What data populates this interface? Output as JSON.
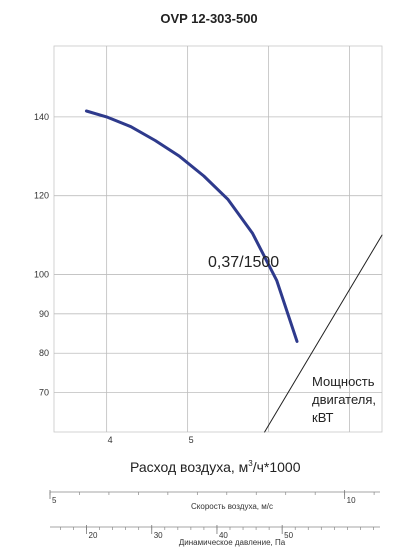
{
  "chart_data": {
    "type": "line",
    "title": "OVP 12-303-500",
    "xlabel": "Расход воздуха, м³/ч*1000",
    "xlabel_main": "Расход воздуха, м",
    "xlabel_sup": "3",
    "xlabel_tail": "/ч*1000",
    "xlim": [
      3.35,
      7.4
    ],
    "ylim": [
      60,
      158
    ],
    "x_ticks": [
      "4",
      "5"
    ],
    "y_ticks": [
      "140",
      "120",
      "100",
      "90",
      "80",
      "70"
    ],
    "y_tick_values": [
      140,
      120,
      100,
      90,
      80,
      70
    ],
    "grid": true,
    "series": [
      {
        "name": "",
        "color": "#2e3a8c",
        "x": [
          3.75,
          4.0,
          4.3,
          4.6,
          4.9,
          5.2,
          5.5,
          5.8,
          6.1,
          6.35
        ],
        "y": [
          141.5,
          140,
          137.5,
          134,
          130,
          125,
          119,
          110.5,
          98.5,
          83
        ]
      },
      {
        "name": "",
        "color": "#222222",
        "x": [
          5.95,
          7.4
        ],
        "y": [
          60,
          110
        ]
      }
    ],
    "annotations": {
      "curve_label": "0,37/1500",
      "power_label": [
        "Мощность",
        "двигателя,",
        "кВТ"
      ]
    },
    "secondary_axes": [
      {
        "label": "Скорость воздуха, м/с",
        "ticks": [
          {
            "label": "5",
            "value": 5
          },
          {
            "label": "10",
            "value": 10
          }
        ],
        "range": [
          5,
          10.6
        ]
      },
      {
        "label": "Динамическое давление, Па",
        "ticks": [
          {
            "label": "20",
            "value": 20
          },
          {
            "label": "30",
            "value": 30
          },
          {
            "label": "40",
            "value": 40
          },
          {
            "label": "50",
            "value": 50
          }
        ],
        "range": [
          14.4,
          65
        ]
      }
    ]
  }
}
